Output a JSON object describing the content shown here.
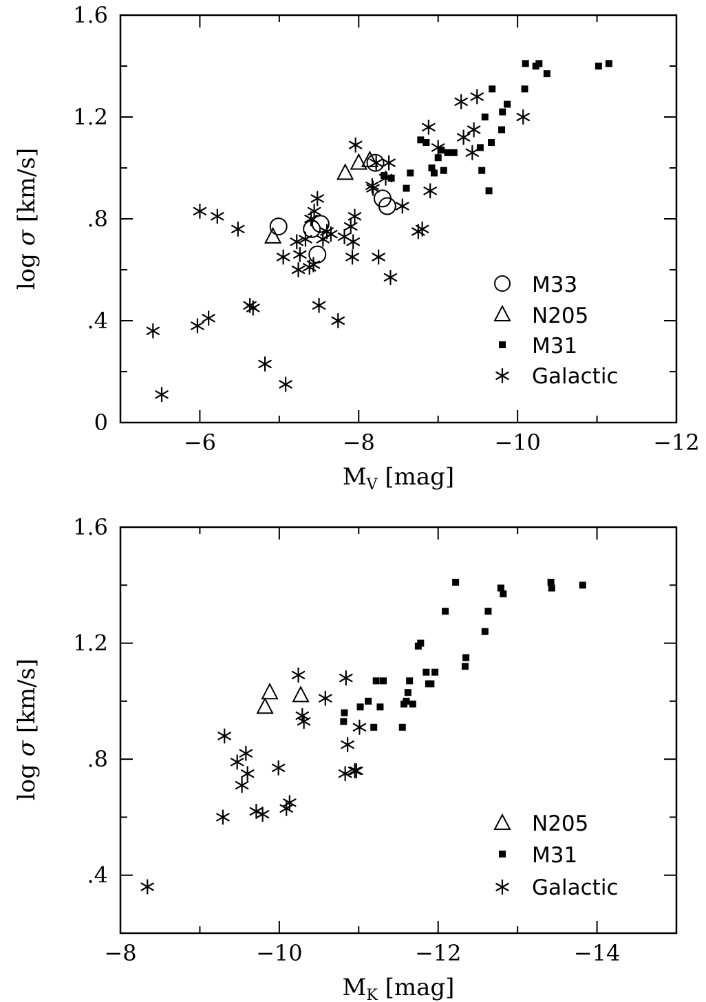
{
  "legend": {
    "m33": "M33",
    "n205": "N205",
    "m31": "M31",
    "galactic": "Galactic"
  },
  "chart_data": [
    {
      "type": "scatter",
      "xlabel": "M_V [mag]",
      "ylabel": "log σ [km/s]",
      "xlim": [
        -5,
        -12
      ],
      "ylim": [
        0,
        1.6
      ],
      "xticks": [
        -6,
        -8,
        -10,
        -12
      ],
      "xtick_labels": [
        "−6",
        "−8",
        "−10",
        "−12"
      ],
      "yticks": [
        0,
        0.4,
        0.8,
        1.2,
        1.6
      ],
      "ytick_labels": [
        "0",
        ".4",
        ".8",
        "1.2",
        "1.6"
      ],
      "legend_position": "bottom-right",
      "series": [
        {
          "name": "M33",
          "marker": "circle",
          "x": [
            -6.99,
            -7.41,
            -7.52,
            -7.48,
            -8.21,
            -8.36,
            -8.3
          ],
          "y": [
            0.77,
            0.76,
            0.78,
            0.66,
            1.02,
            0.85,
            0.88
          ]
        },
        {
          "name": "N205",
          "marker": "triangle",
          "x": [
            -6.92,
            -7.83,
            -8.0,
            -8.14
          ],
          "y": [
            0.73,
            0.98,
            1.02,
            1.03
          ]
        },
        {
          "name": "M31",
          "marker": "square",
          "x": [
            -8.32,
            -8.41,
            -8.6,
            -8.65,
            -8.78,
            -8.85,
            -8.92,
            -8.95,
            -9.0,
            -9.04,
            -9.07,
            -9.12,
            -9.2,
            -9.53,
            -9.55,
            -9.59,
            -9.64,
            -9.67,
            -9.68,
            -9.8,
            -9.81,
            -9.87,
            -10.09,
            -10.1,
            -10.23,
            -10.27,
            -10.37,
            -11.02,
            -11.15
          ],
          "y": [
            0.97,
            0.96,
            0.92,
            0.98,
            1.11,
            1.1,
            1.0,
            0.98,
            1.04,
            1.07,
            0.99,
            1.06,
            1.06,
            1.08,
            0.99,
            1.2,
            0.91,
            1.1,
            1.31,
            1.15,
            1.22,
            1.25,
            1.31,
            1.41,
            1.4,
            1.41,
            1.37,
            1.4,
            1.41
          ]
        },
        {
          "name": "Galactic",
          "marker": "asterisk",
          "x": [
            -5.41,
            -5.52,
            -5.97,
            -6.0,
            -6.11,
            -6.22,
            -6.48,
            -6.63,
            -6.67,
            -6.82,
            -7.05,
            -7.08,
            -7.22,
            -7.24,
            -7.26,
            -7.33,
            -7.38,
            -7.4,
            -7.43,
            -7.44,
            -7.48,
            -7.5,
            -7.55,
            -7.6,
            -7.65,
            -7.74,
            -7.82,
            -7.9,
            -7.92,
            -7.93,
            -7.95,
            -7.96,
            -8.17,
            -8.18,
            -8.22,
            -8.25,
            -8.34,
            -8.38,
            -8.4,
            -8.55,
            -8.75,
            -8.8,
            -8.88,
            -8.9,
            -9.0,
            -9.29,
            -9.32,
            -9.43,
            -9.45,
            -9.49,
            -10.07
          ],
          "y": [
            0.36,
            0.11,
            0.38,
            0.83,
            0.41,
            0.81,
            0.76,
            0.46,
            0.45,
            0.23,
            0.65,
            0.15,
            0.71,
            0.6,
            0.66,
            0.72,
            0.61,
            0.8,
            0.62,
            0.83,
            0.88,
            0.46,
            0.72,
            0.75,
            0.74,
            0.4,
            0.73,
            0.77,
            0.65,
            0.71,
            0.81,
            1.09,
            0.93,
            0.92,
            1.02,
            0.65,
            0.96,
            1.02,
            0.57,
            0.85,
            0.75,
            0.76,
            1.16,
            0.91,
            1.08,
            1.26,
            1.12,
            1.06,
            1.15,
            1.28,
            1.2
          ]
        }
      ]
    },
    {
      "type": "scatter",
      "xlabel": "M_K [mag]",
      "ylabel": "log σ [km/s]",
      "xlim": [
        -8,
        -15
      ],
      "ylim": [
        0.2,
        1.6
      ],
      "xticks": [
        -8,
        -10,
        -12,
        -14
      ],
      "xtick_labels": [
        "−8",
        "−10",
        "−12",
        "−14"
      ],
      "yticks": [
        0.4,
        0.8,
        1.2,
        1.6
      ],
      "ytick_labels": [
        ".4",
        ".8",
        "1.2",
        "1.6"
      ],
      "legend_position": "bottom-right",
      "series": [
        {
          "name": "N205",
          "marker": "triangle",
          "x": [
            -9.82,
            -9.88,
            -10.27
          ],
          "y": [
            0.98,
            1.03,
            1.02
          ]
        },
        {
          "name": "M31",
          "marker": "square",
          "x": [
            -10.81,
            -10.82,
            -11.02,
            -11.12,
            -11.19,
            -11.22,
            -11.27,
            -11.31,
            -11.55,
            -11.57,
            -11.6,
            -11.62,
            -11.64,
            -11.68,
            -11.75,
            -11.78,
            -11.85,
            -11.88,
            -11.91,
            -11.96,
            -12.09,
            -12.22,
            -12.34,
            -12.35,
            -12.59,
            -12.63,
            -12.79,
            -12.82,
            -13.42,
            -13.43,
            -13.82
          ],
          "y": [
            0.93,
            0.96,
            0.98,
            1.0,
            0.91,
            1.07,
            0.98,
            1.07,
            0.91,
            0.99,
            1.0,
            1.03,
            1.07,
            0.99,
            1.19,
            1.2,
            1.1,
            1.06,
            1.06,
            1.1,
            1.31,
            1.41,
            1.12,
            1.15,
            1.24,
            1.31,
            1.39,
            1.37,
            1.41,
            1.39,
            1.4
          ]
        },
        {
          "name": "Galactic",
          "marker": "asterisk",
          "x": [
            -8.34,
            -9.29,
            -9.31,
            -9.47,
            -9.53,
            -9.58,
            -9.6,
            -9.71,
            -9.79,
            -9.99,
            -10.09,
            -10.13,
            -10.24,
            -10.29,
            -10.31,
            -10.58,
            -10.83,
            -10.84,
            -10.86,
            -10.95,
            -10.97,
            -11.01
          ],
          "y": [
            0.36,
            0.6,
            0.88,
            0.79,
            0.71,
            0.82,
            0.75,
            0.62,
            0.61,
            0.77,
            0.63,
            0.65,
            1.09,
            0.95,
            0.93,
            1.01,
            0.75,
            1.08,
            0.85,
            0.76,
            0.76,
            0.91
          ]
        }
      ]
    }
  ]
}
